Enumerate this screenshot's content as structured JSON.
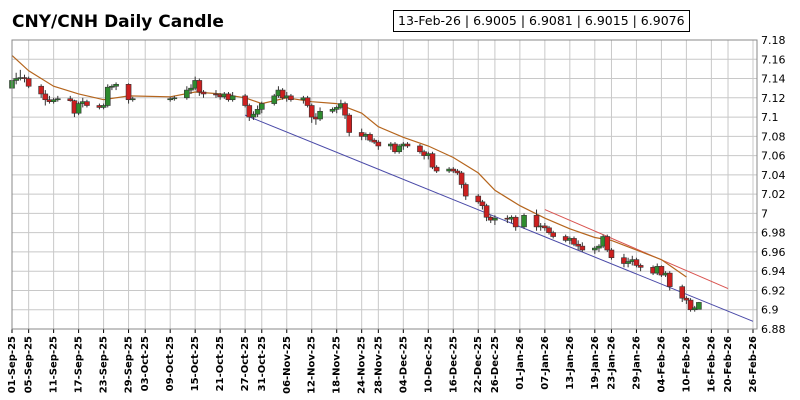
{
  "chart_data": {
    "type": "candlestick",
    "title": "CNY/CNH Daily Candle",
    "info_box": "13-Feb-26 | 6.9005 | 6.9081 | 6.9015 | 6.9076",
    "x_tick_labels": [
      "01-Sep-25",
      "05-Sep-25",
      "11-Sep-25",
      "17-Sep-25",
      "23-Sep-25",
      "29-Sep-25",
      "03-Oct-25",
      "09-Oct-25",
      "15-Oct-25",
      "21-Oct-25",
      "27-Oct-25",
      "31-Oct-25",
      "06-Nov-25",
      "12-Nov-25",
      "18-Nov-25",
      "24-Nov-25",
      "28-Nov-25",
      "04-Dec-25",
      "10-Dec-25",
      "16-Dec-25",
      "22-Dec-25",
      "26-Dec-25",
      "01-Jan-26",
      "07-Jan-26",
      "13-Jan-26",
      "19-Jan-26",
      "23-Jan-26",
      "29-Jan-26",
      "04-Feb-26",
      "10-Feb-26",
      "16-Feb-26",
      "20-Feb-26",
      "26-Feb-26"
    ],
    "y_ticks": [
      "7.18",
      "7.16",
      "7.14",
      "7.12",
      "7.1",
      "7.08",
      "7.06",
      "7.04",
      "7.02",
      "7",
      "6.98",
      "6.96",
      "6.94",
      "6.92",
      "6.9",
      "6.88"
    ],
    "ylim": [
      6.88,
      7.18
    ],
    "grid": true,
    "colors": {
      "up": "#2e8b2e",
      "down": "#cc1f1f",
      "moving_average": "#b5651d",
      "trend_support": "#4a4aa8",
      "trend_resistance": "#d9534f",
      "grid": "#c8c8c8"
    },
    "candles": [
      {
        "date": "01-Sep-25",
        "open": 7.13,
        "high": 7.148,
        "low": 7.128,
        "close": 7.138
      },
      {
        "date": "02-Sep-25",
        "open": 7.138,
        "high": 7.146,
        "low": 7.134,
        "close": 7.14
      },
      {
        "date": "03-Sep-25",
        "open": 7.14,
        "high": 7.149,
        "low": 7.138,
        "close": 7.141
      },
      {
        "date": "04-Sep-25",
        "open": 7.141,
        "high": 7.144,
        "low": 7.136,
        "close": 7.14
      },
      {
        "date": "05-Sep-25",
        "open": 7.14,
        "high": 7.142,
        "low": 7.13,
        "close": 7.132
      },
      {
        "date": "08-Sep-25",
        "open": 7.132,
        "high": 7.134,
        "low": 7.12,
        "close": 7.124
      },
      {
        "date": "09-Sep-25",
        "open": 7.124,
        "high": 7.128,
        "low": 7.112,
        "close": 7.118
      },
      {
        "date": "10-Sep-25",
        "open": 7.118,
        "high": 7.122,
        "low": 7.114,
        "close": 7.116
      },
      {
        "date": "11-Sep-25",
        "open": 7.116,
        "high": 7.12,
        "low": 7.114,
        "close": 7.118
      },
      {
        "date": "12-Sep-25",
        "open": 7.118,
        "high": 7.122,
        "low": 7.116,
        "close": 7.119
      },
      {
        "date": "15-Sep-25",
        "open": 7.119,
        "high": 7.122,
        "low": 7.116,
        "close": 7.117
      },
      {
        "date": "16-Sep-25",
        "open": 7.117,
        "high": 7.118,
        "low": 7.1,
        "close": 7.104
      },
      {
        "date": "17-Sep-25",
        "open": 7.104,
        "high": 7.116,
        "low": 7.102,
        "close": 7.114
      },
      {
        "date": "18-Sep-25",
        "open": 7.114,
        "high": 7.12,
        "low": 7.11,
        "close": 7.116
      },
      {
        "date": "19-Sep-25",
        "open": 7.116,
        "high": 7.118,
        "low": 7.11,
        "close": 7.112
      },
      {
        "date": "22-Sep-25",
        "open": 7.112,
        "high": 7.114,
        "low": 7.108,
        "close": 7.11
      },
      {
        "date": "23-Sep-25",
        "open": 7.11,
        "high": 7.114,
        "low": 7.108,
        "close": 7.112
      },
      {
        "date": "24-Sep-25",
        "open": 7.112,
        "high": 7.134,
        "low": 7.11,
        "close": 7.131
      },
      {
        "date": "25-Sep-25",
        "open": 7.131,
        "high": 7.134,
        "low": 7.128,
        "close": 7.132
      },
      {
        "date": "26-Sep-25",
        "open": 7.132,
        "high": 7.136,
        "low": 7.128,
        "close": 7.134
      },
      {
        "date": "29-Sep-25",
        "open": 7.134,
        "high": 7.135,
        "low": 7.114,
        "close": 7.118
      },
      {
        "date": "30-Sep-25",
        "open": 7.118,
        "high": 7.121,
        "low": 7.116,
        "close": 7.119
      },
      {
        "date": "09-Oct-25",
        "open": 7.118,
        "high": 7.121,
        "low": 7.116,
        "close": 7.119
      },
      {
        "date": "10-Oct-25",
        "open": 7.119,
        "high": 7.122,
        "low": 7.117,
        "close": 7.12
      },
      {
        "date": "13-Oct-25",
        "open": 7.12,
        "high": 7.132,
        "low": 7.118,
        "close": 7.128
      },
      {
        "date": "14-Oct-25",
        "open": 7.128,
        "high": 7.134,
        "low": 7.124,
        "close": 7.13
      },
      {
        "date": "15-Oct-25",
        "open": 7.13,
        "high": 7.142,
        "low": 7.128,
        "close": 7.138
      },
      {
        "date": "16-Oct-25",
        "open": 7.138,
        "high": 7.14,
        "low": 7.122,
        "close": 7.126
      },
      {
        "date": "17-Oct-25",
        "open": 7.126,
        "high": 7.128,
        "low": 7.12,
        "close": 7.124
      },
      {
        "date": "20-Oct-25",
        "open": 7.124,
        "high": 7.128,
        "low": 7.12,
        "close": 7.123
      },
      {
        "date": "21-Oct-25",
        "open": 7.123,
        "high": 7.125,
        "low": 7.118,
        "close": 7.121
      },
      {
        "date": "22-Oct-25",
        "open": 7.121,
        "high": 7.126,
        "low": 7.119,
        "close": 7.124
      },
      {
        "date": "23-Oct-25",
        "open": 7.124,
        "high": 7.126,
        "low": 7.116,
        "close": 7.118
      },
      {
        "date": "24-Oct-25",
        "open": 7.118,
        "high": 7.126,
        "low": 7.116,
        "close": 7.122
      },
      {
        "date": "27-Oct-25",
        "open": 7.122,
        "high": 7.124,
        "low": 7.11,
        "close": 7.112
      },
      {
        "date": "28-Oct-25",
        "open": 7.112,
        "high": 7.114,
        "low": 7.096,
        "close": 7.1
      },
      {
        "date": "29-Oct-25",
        "open": 7.1,
        "high": 7.106,
        "low": 7.097,
        "close": 7.103
      },
      {
        "date": "30-Oct-25",
        "open": 7.103,
        "high": 7.112,
        "low": 7.1,
        "close": 7.108
      },
      {
        "date": "31-Oct-25",
        "open": 7.108,
        "high": 7.116,
        "low": 7.104,
        "close": 7.114
      },
      {
        "date": "03-Nov-25",
        "open": 7.114,
        "high": 7.124,
        "low": 7.112,
        "close": 7.122
      },
      {
        "date": "04-Nov-25",
        "open": 7.122,
        "high": 7.132,
        "low": 7.12,
        "close": 7.128
      },
      {
        "date": "05-Nov-25",
        "open": 7.128,
        "high": 7.13,
        "low": 7.118,
        "close": 7.12
      },
      {
        "date": "06-Nov-25",
        "open": 7.12,
        "high": 7.126,
        "low": 7.116,
        "close": 7.122
      },
      {
        "date": "07-Nov-25",
        "open": 7.122,
        "high": 7.124,
        "low": 7.116,
        "close": 7.118
      },
      {
        "date": "10-Nov-25",
        "open": 7.118,
        "high": 7.122,
        "low": 7.114,
        "close": 7.12
      },
      {
        "date": "11-Nov-25",
        "open": 7.12,
        "high": 7.122,
        "low": 7.11,
        "close": 7.112
      },
      {
        "date": "12-Nov-25",
        "open": 7.112,
        "high": 7.114,
        "low": 7.094,
        "close": 7.1
      },
      {
        "date": "13-Nov-25",
        "open": 7.1,
        "high": 7.104,
        "low": 7.092,
        "close": 7.098
      },
      {
        "date": "14-Nov-25",
        "open": 7.098,
        "high": 7.11,
        "low": 7.096,
        "close": 7.106
      },
      {
        "date": "17-Nov-25",
        "open": 7.106,
        "high": 7.11,
        "low": 7.104,
        "close": 7.108
      },
      {
        "date": "18-Nov-25",
        "open": 7.108,
        "high": 7.112,
        "low": 7.104,
        "close": 7.11
      },
      {
        "date": "19-Nov-25",
        "open": 7.11,
        "high": 7.118,
        "low": 7.108,
        "close": 7.114
      },
      {
        "date": "20-Nov-25",
        "open": 7.114,
        "high": 7.116,
        "low": 7.098,
        "close": 7.102
      },
      {
        "date": "21-Nov-25",
        "open": 7.102,
        "high": 7.104,
        "low": 7.08,
        "close": 7.084
      },
      {
        "date": "24-Nov-25",
        "open": 7.084,
        "high": 7.088,
        "low": 7.076,
        "close": 7.08
      },
      {
        "date": "25-Nov-25",
        "open": 7.08,
        "high": 7.084,
        "low": 7.076,
        "close": 7.082
      },
      {
        "date": "26-Nov-25",
        "open": 7.082,
        "high": 7.084,
        "low": 7.074,
        "close": 7.076
      },
      {
        "date": "27-Nov-25",
        "open": 7.076,
        "high": 7.078,
        "low": 7.072,
        "close": 7.074
      },
      {
        "date": "28-Nov-25",
        "open": 7.074,
        "high": 7.076,
        "low": 7.066,
        "close": 7.07
      },
      {
        "date": "01-Dec-25",
        "open": 7.07,
        "high": 7.074,
        "low": 7.066,
        "close": 7.072
      },
      {
        "date": "02-Dec-25",
        "open": 7.072,
        "high": 7.074,
        "low": 7.062,
        "close": 7.064
      },
      {
        "date": "03-Dec-25",
        "open": 7.064,
        "high": 7.072,
        "low": 7.062,
        "close": 7.07
      },
      {
        "date": "04-Dec-25",
        "open": 7.07,
        "high": 7.074,
        "low": 7.066,
        "close": 7.072
      },
      {
        "date": "05-Dec-25",
        "open": 7.072,
        "high": 7.074,
        "low": 7.068,
        "close": 7.07
      },
      {
        "date": "08-Dec-25",
        "open": 7.07,
        "high": 7.072,
        "low": 7.062,
        "close": 7.064
      },
      {
        "date": "09-Dec-25",
        "open": 7.064,
        "high": 7.066,
        "low": 7.056,
        "close": 7.06
      },
      {
        "date": "10-Dec-25",
        "open": 7.06,
        "high": 7.064,
        "low": 7.056,
        "close": 7.062
      },
      {
        "date": "11-Dec-25",
        "open": 7.062,
        "high": 7.064,
        "low": 7.046,
        "close": 7.048
      },
      {
        "date": "12-Dec-25",
        "open": 7.048,
        "high": 7.05,
        "low": 7.042,
        "close": 7.044
      },
      {
        "date": "15-Dec-25",
        "open": 7.044,
        "high": 7.048,
        "low": 7.042,
        "close": 7.046
      },
      {
        "date": "16-Dec-25",
        "open": 7.046,
        "high": 7.048,
        "low": 7.042,
        "close": 7.044
      },
      {
        "date": "17-Dec-25",
        "open": 7.044,
        "high": 7.046,
        "low": 7.04,
        "close": 7.042
      },
      {
        "date": "18-Dec-25",
        "open": 7.042,
        "high": 7.044,
        "low": 7.026,
        "close": 7.03
      },
      {
        "date": "19-Dec-25",
        "open": 7.03,
        "high": 7.032,
        "low": 7.014,
        "close": 7.018
      },
      {
        "date": "22-Dec-25",
        "open": 7.018,
        "high": 7.02,
        "low": 7.01,
        "close": 7.012
      },
      {
        "date": "23-Dec-25",
        "open": 7.012,
        "high": 7.014,
        "low": 7.004,
        "close": 7.008
      },
      {
        "date": "24-Dec-25",
        "open": 7.008,
        "high": 7.01,
        "low": 6.992,
        "close": 6.996
      },
      {
        "date": "25-Dec-25",
        "open": 6.996,
        "high": 6.998,
        "low": 6.99,
        "close": 6.993
      },
      {
        "date": "26-Dec-25",
        "open": 6.993,
        "high": 6.998,
        "low": 6.988,
        "close": 6.995
      },
      {
        "date": "29-Dec-25",
        "open": 6.995,
        "high": 6.998,
        "low": 6.99,
        "close": 6.994
      },
      {
        "date": "30-Dec-25",
        "open": 6.994,
        "high": 6.998,
        "low": 6.99,
        "close": 6.996
      },
      {
        "date": "31-Dec-25",
        "open": 6.996,
        "high": 6.998,
        "low": 6.982,
        "close": 6.986
      },
      {
        "date": "02-Jan-26",
        "open": 6.986,
        "high": 7.0,
        "low": 6.984,
        "close": 6.998
      },
      {
        "date": "05-Jan-26",
        "open": 6.998,
        "high": 7.004,
        "low": 6.982,
        "close": 6.986
      },
      {
        "date": "06-Jan-26",
        "open": 6.986,
        "high": 6.99,
        "low": 6.982,
        "close": 6.987
      },
      {
        "date": "07-Jan-26",
        "open": 6.987,
        "high": 6.99,
        "low": 6.982,
        "close": 6.985
      },
      {
        "date": "08-Jan-26",
        "open": 6.985,
        "high": 6.987,
        "low": 6.978,
        "close": 6.98
      },
      {
        "date": "09-Jan-26",
        "open": 6.98,
        "high": 6.982,
        "low": 6.974,
        "close": 6.976
      },
      {
        "date": "12-Jan-26",
        "open": 6.976,
        "high": 6.978,
        "low": 6.97,
        "close": 6.972
      },
      {
        "date": "13-Jan-26",
        "open": 6.972,
        "high": 6.976,
        "low": 6.968,
        "close": 6.974
      },
      {
        "date": "14-Jan-26",
        "open": 6.974,
        "high": 6.976,
        "low": 6.966,
        "close": 6.968
      },
      {
        "date": "15-Jan-26",
        "open": 6.968,
        "high": 6.972,
        "low": 6.962,
        "close": 6.966
      },
      {
        "date": "16-Jan-26",
        "open": 6.966,
        "high": 6.97,
        "low": 6.96,
        "close": 6.962
      },
      {
        "date": "19-Jan-26",
        "open": 6.962,
        "high": 6.966,
        "low": 6.958,
        "close": 6.964
      },
      {
        "date": "20-Jan-26",
        "open": 6.964,
        "high": 6.968,
        "low": 6.96,
        "close": 6.966
      },
      {
        "date": "21-Jan-26",
        "open": 6.966,
        "high": 6.978,
        "low": 6.964,
        "close": 6.976
      },
      {
        "date": "22-Jan-26",
        "open": 6.976,
        "high": 6.978,
        "low": 6.96,
        "close": 6.962
      },
      {
        "date": "23-Jan-26",
        "open": 6.962,
        "high": 6.964,
        "low": 6.952,
        "close": 6.954
      },
      {
        "date": "26-Jan-26",
        "open": 6.954,
        "high": 6.958,
        "low": 6.944,
        "close": 6.948
      },
      {
        "date": "27-Jan-26",
        "open": 6.948,
        "high": 6.954,
        "low": 6.944,
        "close": 6.95
      },
      {
        "date": "28-Jan-26",
        "open": 6.95,
        "high": 6.956,
        "low": 6.946,
        "close": 6.952
      },
      {
        "date": "29-Jan-26",
        "open": 6.952,
        "high": 6.954,
        "low": 6.944,
        "close": 6.946
      },
      {
        "date": "30-Jan-26",
        "open": 6.946,
        "high": 6.948,
        "low": 6.94,
        "close": 6.944
      },
      {
        "date": "02-Feb-26",
        "open": 6.944,
        "high": 6.946,
        "low": 6.936,
        "close": 6.938
      },
      {
        "date": "03-Feb-26",
        "open": 6.938,
        "high": 6.948,
        "low": 6.936,
        "close": 6.945
      },
      {
        "date": "04-Feb-26",
        "open": 6.945,
        "high": 6.946,
        "low": 6.934,
        "close": 6.936
      },
      {
        "date": "05-Feb-26",
        "open": 6.936,
        "high": 6.94,
        "low": 6.934,
        "close": 6.938
      },
      {
        "date": "06-Feb-26",
        "open": 6.938,
        "high": 6.94,
        "low": 6.92,
        "close": 6.924
      },
      {
        "date": "09-Feb-26",
        "open": 6.924,
        "high": 6.926,
        "low": 6.908,
        "close": 6.912
      },
      {
        "date": "10-Feb-26",
        "open": 6.912,
        "high": 6.914,
        "low": 6.906,
        "close": 6.91
      },
      {
        "date": "11-Feb-26",
        "open": 6.91,
        "high": 6.912,
        "low": 6.898,
        "close": 6.9
      },
      {
        "date": "12-Feb-26",
        "open": 6.9,
        "high": 6.904,
        "low": 6.898,
        "close": 6.902
      },
      {
        "date": "13-Feb-26",
        "open": 6.9005,
        "high": 6.9081,
        "low": 6.9015,
        "close": 6.9076
      }
    ],
    "moving_average": [
      {
        "date": "01-Sep-25",
        "value": 7.164
      },
      {
        "date": "05-Sep-25",
        "value": 7.148
      },
      {
        "date": "11-Sep-25",
        "value": 7.132
      },
      {
        "date": "17-Sep-25",
        "value": 7.124
      },
      {
        "date": "23-Sep-25",
        "value": 7.118
      },
      {
        "date": "29-Sep-25",
        "value": 7.122
      },
      {
        "date": "09-Oct-25",
        "value": 7.121
      },
      {
        "date": "15-Oct-25",
        "value": 7.126
      },
      {
        "date": "21-Oct-25",
        "value": 7.124
      },
      {
        "date": "27-Oct-25",
        "value": 7.12
      },
      {
        "date": "31-Oct-25",
        "value": 7.114
      },
      {
        "date": "06-Nov-25",
        "value": 7.12
      },
      {
        "date": "12-Nov-25",
        "value": 7.116
      },
      {
        "date": "18-Nov-25",
        "value": 7.114
      },
      {
        "date": "24-Nov-25",
        "value": 7.104
      },
      {
        "date": "28-Nov-25",
        "value": 7.09
      },
      {
        "date": "04-Dec-25",
        "value": 7.079
      },
      {
        "date": "10-Dec-25",
        "value": 7.07
      },
      {
        "date": "16-Dec-25",
        "value": 7.058
      },
      {
        "date": "22-Dec-25",
        "value": 7.042
      },
      {
        "date": "26-Dec-25",
        "value": 7.024
      },
      {
        "date": "01-Jan-26",
        "value": 7.008
      },
      {
        "date": "07-Jan-26",
        "value": 6.995
      },
      {
        "date": "13-Jan-26",
        "value": 6.984
      },
      {
        "date": "19-Jan-26",
        "value": 6.975
      },
      {
        "date": "23-Jan-26",
        "value": 6.972
      },
      {
        "date": "29-Jan-26",
        "value": 6.962
      },
      {
        "date": "04-Feb-26",
        "value": 6.952
      },
      {
        "date": "10-Feb-26",
        "value": 6.934
      }
    ],
    "trend_lines": [
      {
        "name_key": "trend_support",
        "from": {
          "date": "27-Oct-25",
          "value": 7.102
        },
        "to": {
          "date": "26-Feb-26",
          "value": 6.888
        }
      },
      {
        "name_key": "trend_resistance",
        "from": {
          "date": "07-Jan-26",
          "value": 7.004
        },
        "to": {
          "date": "20-Feb-26",
          "value": 6.922
        }
      }
    ]
  }
}
